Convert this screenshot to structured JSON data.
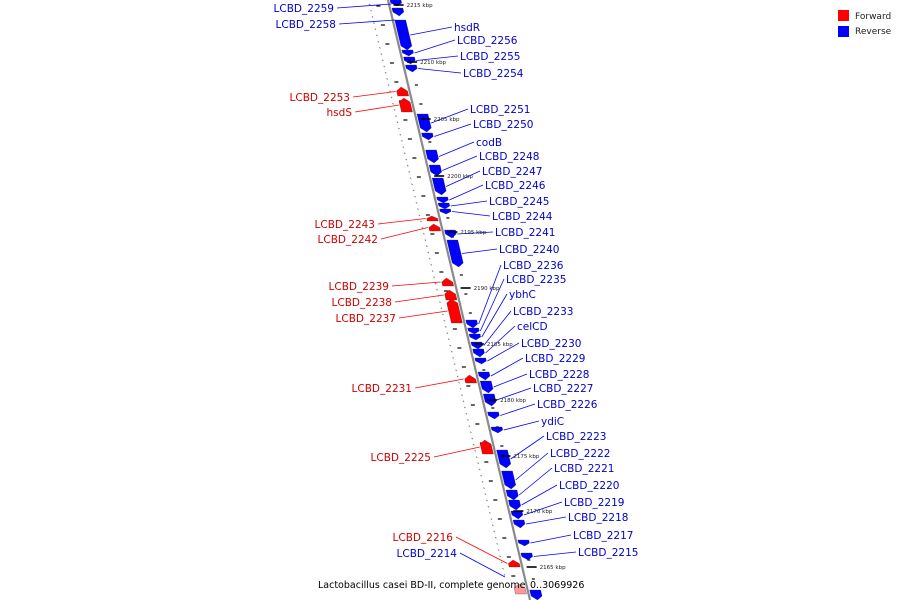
{
  "genome_caption": "Lactobacillus casei BD-II, complete genome",
  "coordinate_caption": "0..3069926",
  "legend": [
    {
      "label": "Forward",
      "color": "#ff0000"
    },
    {
      "label": "Reverse",
      "color": "#0000ff"
    }
  ],
  "colors": {
    "forward": "#ff0000",
    "reverse": "#0000ff",
    "backbone": "#8a8a8a",
    "forward_label": "#cc0000",
    "reverse_label": "#0000cc"
  },
  "ticks": [
    "2215 kbp",
    "2210 kbp",
    "2205 kbp",
    "2200 kbp",
    "2195 kbp",
    "2190 kbp",
    "2185 kbp",
    "2180 kbp",
    "2175 kbp",
    "2170 kbp",
    "2165 kbp"
  ],
  "forward_genes": [
    "LCBD_2259",
    "LCBD_2258",
    "LCBD_2253",
    "hsdS",
    "LCBD_2243",
    "LCBD_2242",
    "LCBD_2239",
    "LCBD_2238",
    "LCBD_2237",
    "LCBD_2231",
    "LCBD_2225",
    "LCBD_2216",
    "LCBD_2214"
  ],
  "reverse_genes": [
    "hsdR",
    "LCBD_2256",
    "LCBD_2255",
    "LCBD_2254",
    "LCBD_2251",
    "LCBD_2250",
    "codB",
    "LCBD_2248",
    "LCBD_2247",
    "LCBD_2246",
    "LCBD_2245",
    "LCBD_2244",
    "LCBD_2241",
    "LCBD_2240",
    "LCBD_2236",
    "LCBD_2235",
    "ybhC",
    "LCBD_2233",
    "celCD",
    "LCBD_2230",
    "LCBD_2229",
    "LCBD_2228",
    "LCBD_2227",
    "LCBD_2226",
    "ydiC",
    "LCBD_2223",
    "LCBD_2222",
    "LCBD_2221",
    "LCBD_2220",
    "LCBD_2219",
    "LCBD_2218",
    "LCBD_2217",
    "LCBD_2215"
  ]
}
